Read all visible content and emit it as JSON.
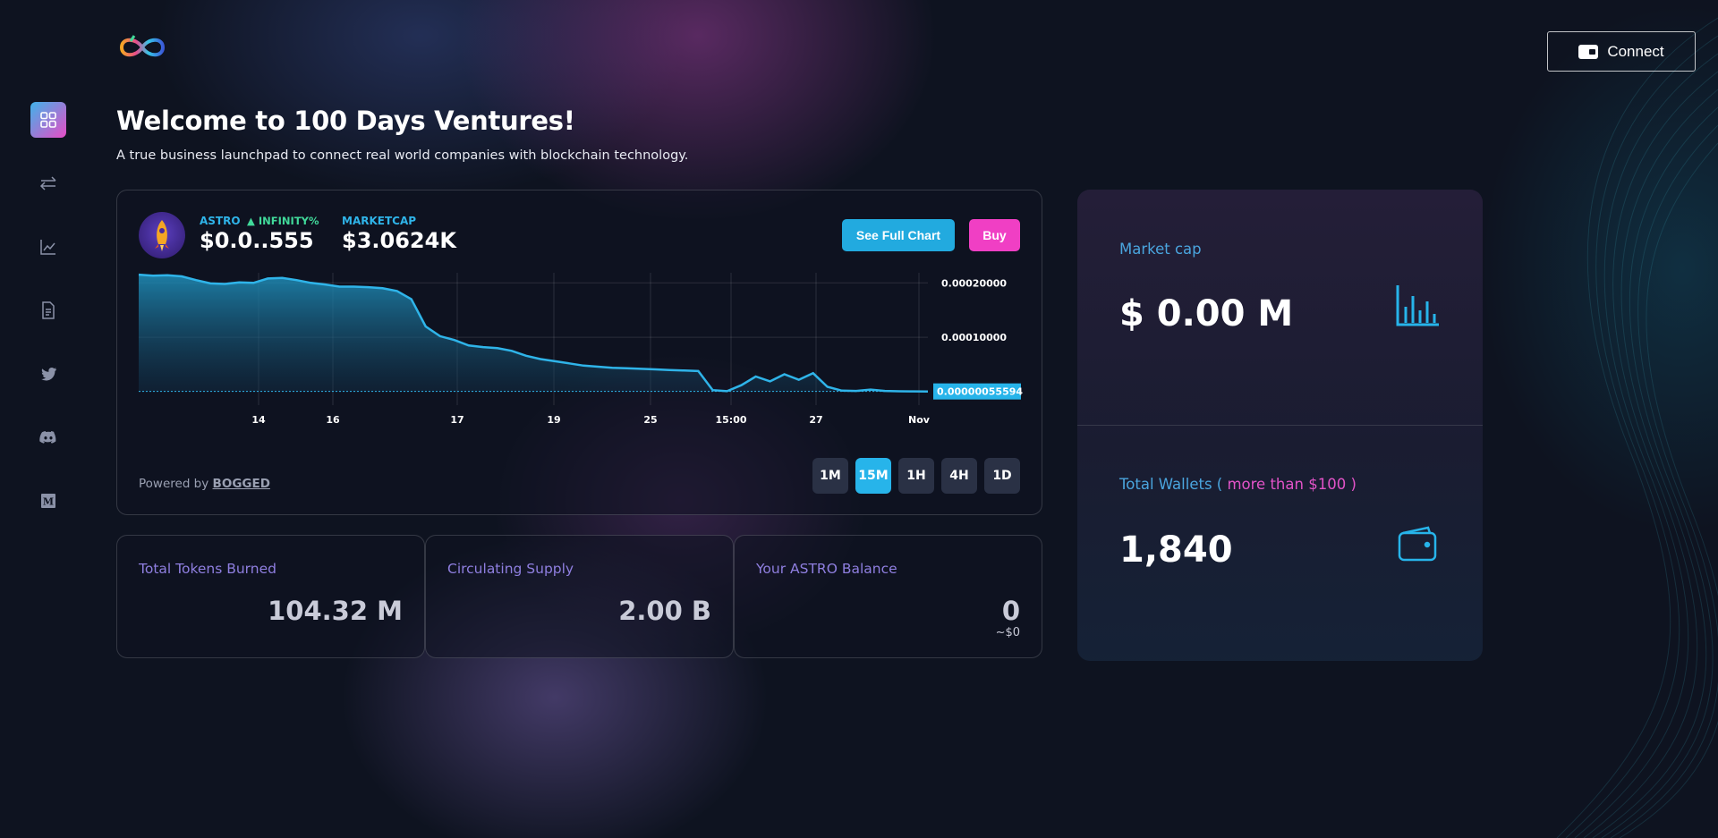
{
  "header": {
    "connect_label": "Connect"
  },
  "sidebar": {
    "items": [
      {
        "icon": "dashboard-icon",
        "active": true
      },
      {
        "icon": "swap-icon",
        "active": false
      },
      {
        "icon": "chart-line-icon",
        "active": false
      },
      {
        "icon": "document-icon",
        "active": false
      },
      {
        "icon": "twitter-icon",
        "active": false
      },
      {
        "icon": "discord-icon",
        "active": false
      },
      {
        "icon": "medium-icon",
        "active": false
      }
    ]
  },
  "page": {
    "title": "Welcome to 100 Days Ventures!",
    "subtitle": "A true business launchpad to connect real world companies with blockchain technology."
  },
  "token": {
    "symbol": "ASTRO",
    "change": "INFINITY%",
    "price": "$0.0..555",
    "marketcap_label": "MARKETCAP",
    "marketcap": "$3.0624K",
    "full_chart_label": "See Full Chart",
    "buy_label": "Buy",
    "powered_prefix": "Powered by",
    "powered_link": "BOGGED",
    "timeframes": [
      "1M",
      "15M",
      "1H",
      "4H",
      "1D"
    ],
    "active_timeframe": "15M"
  },
  "chart_data": {
    "type": "area",
    "x_tick_labels": [
      "14",
      "16",
      "17",
      "19",
      "25",
      "15:00",
      "27",
      "Nov"
    ],
    "y_tick_labels": [
      "0.00020000",
      "0.00010000"
    ],
    "current_value_label": "0.00000055594",
    "ylim": [
      0,
      0.00023
    ],
    "series": [
      {
        "values": [
          0.000215,
          0.000213,
          0.000214,
          0.000212,
          0.000205,
          0.000199,
          0.000198,
          0.000201,
          0.0002,
          0.000208,
          0.000209,
          0.000205,
          0.0002,
          0.000197,
          0.000193,
          0.000193,
          0.000192,
          0.00019,
          0.000185,
          0.00017,
          0.00012,
          0.000102,
          9.5e-05,
          8.5e-05,
          8.2e-05,
          8e-05,
          7.5e-05,
          6.6e-05,
          6e-05,
          5.6e-05,
          5.2e-05,
          4.8e-05,
          4.6e-05,
          4.4e-05,
          4.3e-05,
          4.2e-05,
          4.1e-05,
          4e-05,
          3.9e-05,
          3.8e-05,
          3e-06,
          1e-06,
          1.2e-05,
          2.8e-05,
          1.9e-05,
          3.2e-05,
          2.2e-05,
          3.4e-05,
          9e-06,
          2e-06,
          1.5e-06,
          4e-06,
          1.5e-06,
          8e-07,
          7e-07,
          5.5594e-07
        ]
      }
    ]
  },
  "stats": {
    "burned_label": "Total Tokens Burned",
    "burned_value": "104.32 M",
    "supply_label": "Circulating Supply",
    "supply_value": "2.00 B",
    "balance_label": "Your ASTRO Balance",
    "balance_value": "0",
    "balance_usd": "~$0"
  },
  "right_panel": {
    "marketcap_label": "Market cap",
    "marketcap_value": "$ 0.00 M",
    "wallets_label": "Total Wallets (",
    "wallets_label_highlight": "more than $100",
    "wallets_label_end": ")",
    "wallets_value": "1,840"
  },
  "colors": {
    "accent_blue": "#27b4ea",
    "accent_pink": "#f03fc4",
    "positive": "#41d99a",
    "background": "#0e1320"
  }
}
